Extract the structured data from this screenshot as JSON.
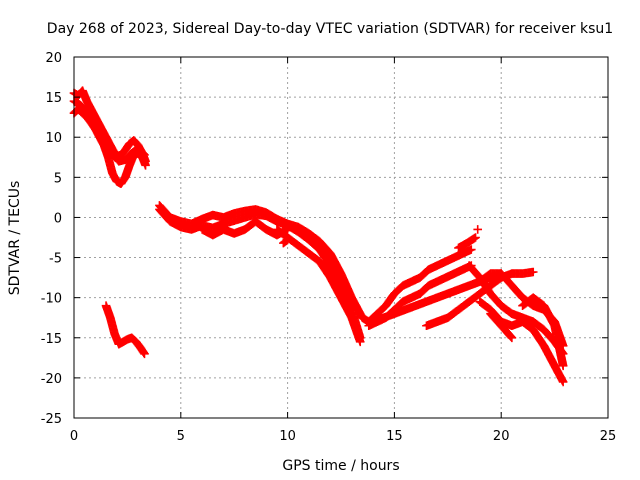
{
  "chart_data": {
    "type": "scatter",
    "title": "Day 268 of 2023, Sidereal Day-to-day VTEC variation (SDTVAR) for receiver ksu1",
    "xlabel": "GPS time / hours",
    "ylabel": "SDTVAR / TECUs",
    "xlim": [
      0,
      25
    ],
    "ylim": [
      -25,
      20
    ],
    "xticks": [
      "0",
      "5",
      "10",
      "15",
      "20",
      "25"
    ],
    "yticks": [
      "20",
      "15",
      "10",
      "5",
      "0",
      "-5",
      "-10",
      "-15",
      "-20",
      "-25"
    ],
    "grid": true,
    "marker": "+",
    "color": "#ff0000",
    "series": [
      {
        "name": "s1",
        "x": [
          0.0,
          0.2,
          0.4,
          0.6,
          0.8,
          1.0,
          1.2,
          1.4,
          1.6,
          1.8,
          2.0,
          2.2,
          2.4,
          2.6,
          2.8,
          3.0,
          3.2,
          3.35
        ],
        "y": [
          15.5,
          15.2,
          15.8,
          14.5,
          13.5,
          12.5,
          11.5,
          10.5,
          9.5,
          8.5,
          7.6,
          7.8,
          8.4,
          9.2,
          9.6,
          9.0,
          8.0,
          7.0
        ]
      },
      {
        "name": "s2",
        "x": [
          0.0,
          0.2,
          0.4,
          0.6,
          0.8,
          1.0,
          1.2,
          1.4,
          1.6,
          1.8,
          2.0,
          2.2,
          2.4,
          2.6,
          2.8,
          3.0,
          3.2,
          3.35
        ],
        "y": [
          13.0,
          13.5,
          13.0,
          12.5,
          11.8,
          11.0,
          10.0,
          9.0,
          7.5,
          5.5,
          4.5,
          4.2,
          5.0,
          6.5,
          7.8,
          8.0,
          7.5,
          6.5
        ]
      },
      {
        "name": "s3",
        "x": [
          0.0,
          0.3,
          0.6,
          0.9,
          1.2,
          1.5,
          1.8,
          2.1,
          2.4,
          2.7,
          3.0,
          3.3
        ],
        "y": [
          14.5,
          14.0,
          13.2,
          12.0,
          11.0,
          9.5,
          8.0,
          7.0,
          7.2,
          8.0,
          8.6,
          7.8
        ]
      },
      {
        "name": "s4",
        "x": [
          1.5,
          1.7,
          1.9,
          2.1,
          2.3,
          2.5,
          2.7,
          2.9,
          3.1,
          3.3
        ],
        "y": [
          -11.0,
          -12.5,
          -14.5,
          -15.8,
          -15.5,
          -15.2,
          -15.0,
          -15.5,
          -16.2,
          -17.0
        ]
      },
      {
        "name": "s5",
        "x": [
          4.0,
          4.5,
          5.0,
          5.5,
          6.0,
          6.5,
          7.0,
          7.5,
          8.0,
          8.5,
          9.0,
          9.5,
          10.0,
          10.5,
          11.0,
          11.5,
          12.0,
          12.5,
          13.0,
          13.5,
          13.8
        ],
        "y": [
          1.5,
          0.0,
          -0.5,
          -0.8,
          -0.2,
          0.3,
          0.0,
          0.5,
          0.8,
          1.0,
          0.6,
          -0.2,
          -0.8,
          -1.2,
          -2.0,
          -3.0,
          -4.5,
          -7.0,
          -10.0,
          -12.5,
          -13.0
        ]
      },
      {
        "name": "s6",
        "x": [
          4.0,
          4.5,
          5.0,
          5.5,
          6.0,
          6.5,
          7.0,
          7.5,
          8.0,
          8.5,
          9.0,
          9.5,
          10.0,
          10.5,
          11.0,
          11.5,
          12.0,
          12.5,
          13.0,
          13.4
        ],
        "y": [
          1.0,
          -0.5,
          -1.2,
          -1.5,
          -1.0,
          -1.3,
          -0.8,
          -0.4,
          0.0,
          0.4,
          0.2,
          -0.5,
          -1.0,
          -1.8,
          -2.8,
          -4.0,
          -6.0,
          -8.5,
          -11.5,
          -15.0
        ]
      },
      {
        "name": "s7",
        "x": [
          6.0,
          6.5,
          7.0,
          7.5,
          8.0,
          8.5,
          9.0,
          9.5,
          10.0
        ],
        "y": [
          -1.5,
          -2.2,
          -1.5,
          -2.0,
          -1.5,
          -0.5,
          -1.5,
          -2.2,
          -1.5
        ]
      },
      {
        "name": "s8",
        "x": [
          9.5,
          10.0,
          10.5,
          11.0,
          11.5,
          12.0,
          12.5,
          13.0,
          13.4
        ],
        "y": [
          -1.5,
          -2.5,
          -3.5,
          -4.5,
          -5.5,
          -7.5,
          -10.0,
          -12.5,
          -15.5
        ]
      },
      {
        "name": "s9",
        "x": [
          9.8,
          10.0
        ],
        "y": [
          -3.2,
          -2.8
        ]
      },
      {
        "name": "s10",
        "x": [
          13.8,
          14.2,
          14.6,
          15.0,
          15.4,
          15.8,
          16.2,
          16.6,
          17.0,
          17.4,
          17.8,
          18.2,
          18.6
        ],
        "y": [
          -13.0,
          -12.0,
          -11.0,
          -9.5,
          -8.5,
          -8.0,
          -7.5,
          -6.5,
          -6.0,
          -5.5,
          -5.0,
          -4.5,
          -4.0
        ]
      },
      {
        "name": "s11",
        "x": [
          13.8,
          14.2,
          14.6,
          15.0,
          15.4,
          15.8,
          16.2,
          16.6,
          17.0,
          17.4,
          17.8,
          18.2,
          18.6
        ],
        "y": [
          -13.5,
          -13.0,
          -12.5,
          -11.5,
          -10.5,
          -10.0,
          -9.5,
          -8.5,
          -8.0,
          -7.5,
          -7.0,
          -6.5,
          -6.0
        ]
      },
      {
        "name": "s12",
        "x": [
          14.0,
          14.5,
          15.0,
          15.5,
          16.0,
          16.5,
          17.0,
          17.5,
          18.0,
          18.5,
          19.0,
          19.5,
          20.0
        ],
        "y": [
          -13.0,
          -12.5,
          -12.0,
          -11.5,
          -11.0,
          -10.5,
          -10.0,
          -9.5,
          -9.0,
          -8.5,
          -8.0,
          -7.5,
          -7.0
        ]
      },
      {
        "name": "s13",
        "x": [
          16.5,
          17.0,
          17.5,
          18.0,
          18.5,
          19.0,
          19.5,
          20.0,
          20.5,
          21.0,
          21.5
        ],
        "y": [
          -13.5,
          -13.0,
          -12.5,
          -11.5,
          -10.5,
          -9.5,
          -8.5,
          -7.5,
          -7.0,
          -7.0,
          -6.8
        ]
      },
      {
        "name": "s14",
        "x": [
          18.0,
          18.4,
          18.8
        ],
        "y": [
          -3.8,
          -3.2,
          -2.5
        ]
      },
      {
        "name": "s15",
        "x": [
          18.9
        ],
        "y": [
          -1.5
        ]
      },
      {
        "name": "s16",
        "x": [
          18.5,
          19.0,
          19.5,
          20.0,
          20.5,
          21.0,
          21.5,
          22.0,
          22.5,
          22.9
        ],
        "y": [
          -6.0,
          -7.5,
          -9.5,
          -11.0,
          -12.0,
          -12.5,
          -13.0,
          -14.0,
          -15.5,
          -17.0
        ]
      },
      {
        "name": "s17",
        "x": [
          19.0,
          19.5,
          20.0,
          20.5,
          21.0,
          21.5,
          22.0,
          22.5,
          22.9
        ],
        "y": [
          -8.0,
          -7.0,
          -7.0,
          -8.5,
          -10.0,
          -11.0,
          -11.5,
          -13.0,
          -16.0
        ]
      },
      {
        "name": "s18",
        "x": [
          19.0,
          19.5,
          20.0,
          20.5,
          21.0,
          21.5,
          22.0,
          22.5,
          22.9
        ],
        "y": [
          -10.5,
          -11.5,
          -13.0,
          -13.5,
          -13.0,
          -14.0,
          -16.0,
          -18.5,
          -20.5
        ]
      },
      {
        "name": "s19",
        "x": [
          19.5,
          20.0,
          20.5
        ],
        "y": [
          -12.0,
          -13.5,
          -15.0
        ]
      },
      {
        "name": "s20",
        "x": [
          21.0,
          21.5,
          22.0,
          22.5,
          22.9
        ],
        "y": [
          -11.0,
          -10.0,
          -11.0,
          -13.5,
          -18.5
        ]
      }
    ]
  }
}
